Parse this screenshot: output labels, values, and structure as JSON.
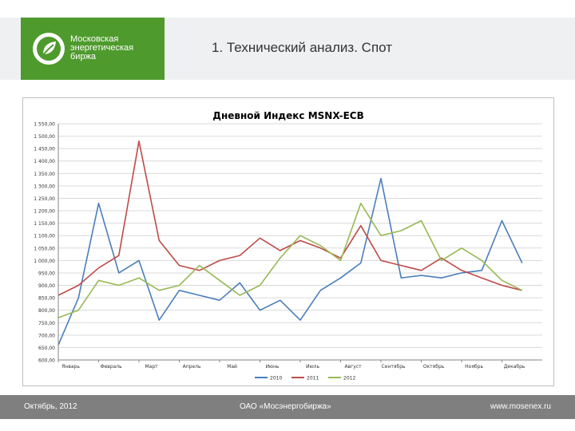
{
  "header": {
    "logo_lines": [
      "Московская",
      "энергетическая",
      "биржа"
    ],
    "title": "1. Технический анализ. Спот",
    "accent_color": "#4e9a2d"
  },
  "chart_data": {
    "type": "line",
    "title": "Дневной Индекс MSNX-ECB",
    "xlabel": "",
    "ylabel": "",
    "ylim": [
      600,
      1550
    ],
    "yticks": [
      600,
      650,
      700,
      750,
      800,
      850,
      900,
      950,
      1000,
      1050,
      1100,
      1150,
      1200,
      1250,
      1300,
      1350,
      1400,
      1450,
      1500,
      1550
    ],
    "ytick_labels": [
      "600,00",
      "650,00",
      "700,00",
      "750,00",
      "800,00",
      "850,00",
      "900,00",
      "950,00",
      "1 000,00",
      "1 050,00",
      "1 100,00",
      "1 150,00",
      "1 200,00",
      "1 250,00",
      "1 300,00",
      "1 350,00",
      "1 400,00",
      "1 450,00",
      "1 500,00",
      "1 550,00"
    ],
    "categories": [
      "Январь",
      "Февраль",
      "Март",
      "Апрель",
      "Май",
      "Июнь",
      "Июль",
      "Август",
      "Сентябрь",
      "Октябрь",
      "Ноябрь",
      "Декабрь"
    ],
    "x": [
      0.0,
      0.5,
      1.0,
      1.5,
      2.0,
      2.5,
      3.0,
      3.5,
      4.0,
      4.5,
      5.0,
      5.5,
      6.0,
      6.5,
      7.0,
      7.5,
      8.0,
      8.5,
      9.0,
      9.5,
      10.0,
      10.5,
      11.0,
      11.5
    ],
    "series": [
      {
        "name": "2010",
        "color": "#4a7ebb",
        "values": [
          660,
          850,
          1230,
          950,
          1000,
          760,
          880,
          860,
          840,
          910,
          800,
          840,
          760,
          880,
          930,
          990,
          1330,
          930,
          940,
          930,
          950,
          960,
          1160,
          990
        ]
      },
      {
        "name": "2011",
        "color": "#be4b48",
        "values": [
          860,
          900,
          970,
          1020,
          1480,
          1080,
          980,
          960,
          1000,
          1020,
          1090,
          1040,
          1080,
          1050,
          1010,
          1140,
          1000,
          980,
          960,
          1010,
          960,
          930,
          900,
          880
        ]
      },
      {
        "name": "2012",
        "color": "#98b954",
        "values": [
          770,
          800,
          920,
          900,
          930,
          880,
          900,
          980,
          920,
          860,
          900,
          1010,
          1100,
          1060,
          1000,
          1230,
          1100,
          1120,
          1160,
          1000,
          1050,
          1000,
          920,
          880
        ]
      }
    ],
    "legend_position": "bottom",
    "grid": true
  },
  "footer": {
    "date": "Октябрь, 2012",
    "org": "ОАО «Мосэнергобиржа»",
    "url": "www.mosenex.ru",
    "color": "#7f7f7f"
  }
}
